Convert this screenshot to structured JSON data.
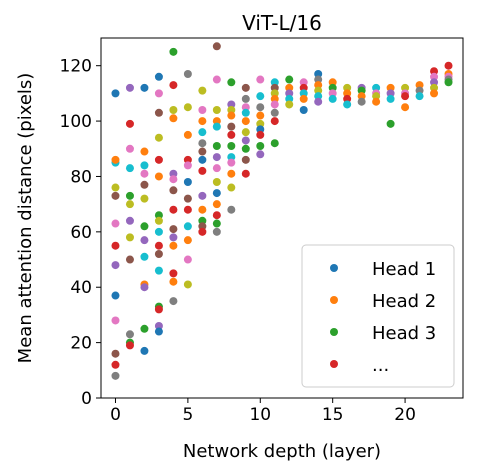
{
  "chart_data": {
    "type": "scatter",
    "title": "ViT-L/16",
    "xlabel": "Network depth (layer)",
    "ylabel": "Mean attention distance (pixels)",
    "xlim": [
      -1,
      24
    ],
    "ylim": [
      0,
      130
    ],
    "xticks": [
      0,
      5,
      10,
      15,
      20
    ],
    "yticks": [
      0,
      20,
      40,
      60,
      80,
      100,
      120
    ],
    "grid": false,
    "legend_position": "lower-right",
    "legend": [
      {
        "label": "Head 1",
        "color": "#1f77b4"
      },
      {
        "label": "Head 2",
        "color": "#ff7f0e"
      },
      {
        "label": "Head 3",
        "color": "#2ca02c"
      },
      {
        "label": "...",
        "color": "#d62728"
      }
    ],
    "points": [
      {
        "x": 0,
        "y": 110,
        "c": "#1f77b4"
      },
      {
        "x": 0,
        "y": 37,
        "c": "#1f77b4"
      },
      {
        "x": 0,
        "y": 8,
        "c": "#7f7f7f"
      },
      {
        "x": 0,
        "y": 12,
        "c": "#d62728"
      },
      {
        "x": 0,
        "y": 16,
        "c": "#8c564b"
      },
      {
        "x": 0,
        "y": 28,
        "c": "#e377c2"
      },
      {
        "x": 0,
        "y": 48,
        "c": "#9467bd"
      },
      {
        "x": 0,
        "y": 55,
        "c": "#d62728"
      },
      {
        "x": 0,
        "y": 63,
        "c": "#e377c2"
      },
      {
        "x": 0,
        "y": 73,
        "c": "#8c564b"
      },
      {
        "x": 0,
        "y": 76,
        "c": "#bcbd22"
      },
      {
        "x": 0,
        "y": 85,
        "c": "#17becf"
      },
      {
        "x": 0,
        "y": 86,
        "c": "#ff7f0e"
      },
      {
        "x": 1,
        "y": 112,
        "c": "#9467bd"
      },
      {
        "x": 1,
        "y": 99,
        "c": "#d62728"
      },
      {
        "x": 1,
        "y": 90,
        "c": "#e377c2"
      },
      {
        "x": 1,
        "y": 83,
        "c": "#17becf"
      },
      {
        "x": 1,
        "y": 73,
        "c": "#2ca02c"
      },
      {
        "x": 1,
        "y": 70,
        "c": "#bcbd22"
      },
      {
        "x": 1,
        "y": 64,
        "c": "#9467bd"
      },
      {
        "x": 1,
        "y": 58,
        "c": "#bcbd22"
      },
      {
        "x": 1,
        "y": 50,
        "c": "#8c564b"
      },
      {
        "x": 1,
        "y": 23,
        "c": "#7f7f7f"
      },
      {
        "x": 1,
        "y": 20,
        "c": "#2ca02c"
      },
      {
        "x": 1,
        "y": 19,
        "c": "#d62728"
      },
      {
        "x": 2,
        "y": 112,
        "c": "#1f77b4"
      },
      {
        "x": 2,
        "y": 89,
        "c": "#ff7f0e"
      },
      {
        "x": 2,
        "y": 84,
        "c": "#17becf"
      },
      {
        "x": 2,
        "y": 81,
        "c": "#e377c2"
      },
      {
        "x": 2,
        "y": 77,
        "c": "#8c564b"
      },
      {
        "x": 2,
        "y": 72,
        "c": "#bcbd22"
      },
      {
        "x": 2,
        "y": 62,
        "c": "#2ca02c"
      },
      {
        "x": 2,
        "y": 57,
        "c": "#9467bd"
      },
      {
        "x": 2,
        "y": 51,
        "c": "#17becf"
      },
      {
        "x": 2,
        "y": 41,
        "c": "#ff7f0e"
      },
      {
        "x": 2,
        "y": 40,
        "c": "#9467bd"
      },
      {
        "x": 2,
        "y": 25,
        "c": "#2ca02c"
      },
      {
        "x": 2,
        "y": 17,
        "c": "#1f77b4"
      },
      {
        "x": 3,
        "y": 116,
        "c": "#1f77b4"
      },
      {
        "x": 3,
        "y": 110,
        "c": "#e377c2"
      },
      {
        "x": 3,
        "y": 103,
        "c": "#8c564b"
      },
      {
        "x": 3,
        "y": 94,
        "c": "#bcbd22"
      },
      {
        "x": 3,
        "y": 86,
        "c": "#d62728"
      },
      {
        "x": 3,
        "y": 80,
        "c": "#ff7f0e"
      },
      {
        "x": 3,
        "y": 66,
        "c": "#2ca02c"
      },
      {
        "x": 3,
        "y": 64,
        "c": "#bcbd22"
      },
      {
        "x": 3,
        "y": 60,
        "c": "#17becf"
      },
      {
        "x": 3,
        "y": 55,
        "c": "#d62728"
      },
      {
        "x": 3,
        "y": 52,
        "c": "#8c564b"
      },
      {
        "x": 3,
        "y": 46,
        "c": "#17becf"
      },
      {
        "x": 3,
        "y": 33,
        "c": "#2ca02c"
      },
      {
        "x": 3,
        "y": 32,
        "c": "#d62728"
      },
      {
        "x": 3,
        "y": 26,
        "c": "#9467bd"
      },
      {
        "x": 3,
        "y": 24,
        "c": "#1f77b4"
      },
      {
        "x": 4,
        "y": 125,
        "c": "#2ca02c"
      },
      {
        "x": 4,
        "y": 113,
        "c": "#d62728"
      },
      {
        "x": 4,
        "y": 104,
        "c": "#bcbd22"
      },
      {
        "x": 4,
        "y": 101,
        "c": "#ff7f0e"
      },
      {
        "x": 4,
        "y": 81,
        "c": "#9467bd"
      },
      {
        "x": 4,
        "y": 79,
        "c": "#e377c2"
      },
      {
        "x": 4,
        "y": 75,
        "c": "#8c564b"
      },
      {
        "x": 4,
        "y": 68,
        "c": "#d62728"
      },
      {
        "x": 4,
        "y": 61,
        "c": "#8c564b"
      },
      {
        "x": 4,
        "y": 58,
        "c": "#9467bd"
      },
      {
        "x": 4,
        "y": 55,
        "c": "#ff7f0e"
      },
      {
        "x": 4,
        "y": 45,
        "c": "#d62728"
      },
      {
        "x": 4,
        "y": 42,
        "c": "#ff7f0e"
      },
      {
        "x": 4,
        "y": 35,
        "c": "#7f7f7f"
      },
      {
        "x": 5,
        "y": 117,
        "c": "#7f7f7f"
      },
      {
        "x": 5,
        "y": 105,
        "c": "#bcbd22"
      },
      {
        "x": 5,
        "y": 95,
        "c": "#ff7f0e"
      },
      {
        "x": 5,
        "y": 86,
        "c": "#d62728"
      },
      {
        "x": 5,
        "y": 84,
        "c": "#e377c2"
      },
      {
        "x": 5,
        "y": 78,
        "c": "#1f77b4"
      },
      {
        "x": 5,
        "y": 72,
        "c": "#8c564b"
      },
      {
        "x": 5,
        "y": 68,
        "c": "#d62728"
      },
      {
        "x": 5,
        "y": 62,
        "c": "#17becf"
      },
      {
        "x": 5,
        "y": 57,
        "c": "#ff7f0e"
      },
      {
        "x": 5,
        "y": 50,
        "c": "#e377c2"
      },
      {
        "x": 5,
        "y": 41,
        "c": "#bcbd22"
      },
      {
        "x": 6,
        "y": 111,
        "c": "#bcbd22"
      },
      {
        "x": 6,
        "y": 104,
        "c": "#e377c2"
      },
      {
        "x": 6,
        "y": 100,
        "c": "#ff7f0e"
      },
      {
        "x": 6,
        "y": 96,
        "c": "#17becf"
      },
      {
        "x": 6,
        "y": 92,
        "c": "#7f7f7f"
      },
      {
        "x": 6,
        "y": 89,
        "c": "#8c564b"
      },
      {
        "x": 6,
        "y": 86,
        "c": "#1f77b4"
      },
      {
        "x": 6,
        "y": 82,
        "c": "#d62728"
      },
      {
        "x": 6,
        "y": 73,
        "c": "#9467bd"
      },
      {
        "x": 6,
        "y": 68,
        "c": "#ff7f0e"
      },
      {
        "x": 6,
        "y": 64,
        "c": "#2ca02c"
      },
      {
        "x": 6,
        "y": 62,
        "c": "#8c564b"
      },
      {
        "x": 6,
        "y": 60,
        "c": "#d62728"
      },
      {
        "x": 7,
        "y": 127,
        "c": "#8c564b"
      },
      {
        "x": 7,
        "y": 115,
        "c": "#e377c2"
      },
      {
        "x": 7,
        "y": 104,
        "c": "#bcbd22"
      },
      {
        "x": 7,
        "y": 100,
        "c": "#ff7f0e"
      },
      {
        "x": 7,
        "y": 98,
        "c": "#17becf"
      },
      {
        "x": 7,
        "y": 91,
        "c": "#2ca02c"
      },
      {
        "x": 7,
        "y": 87,
        "c": "#9467bd"
      },
      {
        "x": 7,
        "y": 83,
        "c": "#e377c2"
      },
      {
        "x": 7,
        "y": 78,
        "c": "#bcbd22"
      },
      {
        "x": 7,
        "y": 74,
        "c": "#1f77b4"
      },
      {
        "x": 7,
        "y": 70,
        "c": "#ff7f0e"
      },
      {
        "x": 7,
        "y": 66,
        "c": "#d62728"
      },
      {
        "x": 7,
        "y": 63,
        "c": "#2ca02c"
      },
      {
        "x": 7,
        "y": 60,
        "c": "#7f7f7f"
      },
      {
        "x": 8,
        "y": 114,
        "c": "#2ca02c"
      },
      {
        "x": 8,
        "y": 106,
        "c": "#9467bd"
      },
      {
        "x": 8,
        "y": 104,
        "c": "#bcbd22"
      },
      {
        "x": 8,
        "y": 102,
        "c": "#ff7f0e"
      },
      {
        "x": 8,
        "y": 98,
        "c": "#8c564b"
      },
      {
        "x": 8,
        "y": 95,
        "c": "#d62728"
      },
      {
        "x": 8,
        "y": 91,
        "c": "#2ca02c"
      },
      {
        "x": 8,
        "y": 87,
        "c": "#17becf"
      },
      {
        "x": 8,
        "y": 85,
        "c": "#e377c2"
      },
      {
        "x": 8,
        "y": 81,
        "c": "#ff7f0e"
      },
      {
        "x": 8,
        "y": 76,
        "c": "#bcbd22"
      },
      {
        "x": 8,
        "y": 68,
        "c": "#7f7f7f"
      },
      {
        "x": 9,
        "y": 112,
        "c": "#8c564b"
      },
      {
        "x": 9,
        "y": 108,
        "c": "#7f7f7f"
      },
      {
        "x": 9,
        "y": 105,
        "c": "#e377c2"
      },
      {
        "x": 9,
        "y": 103,
        "c": "#17becf"
      },
      {
        "x": 9,
        "y": 100,
        "c": "#ff7f0e"
      },
      {
        "x": 9,
        "y": 96,
        "c": "#bcbd22"
      },
      {
        "x": 9,
        "y": 93,
        "c": "#9467bd"
      },
      {
        "x": 9,
        "y": 90,
        "c": "#2ca02c"
      },
      {
        "x": 9,
        "y": 86,
        "c": "#8c564b"
      },
      {
        "x": 9,
        "y": 81,
        "c": "#d62728"
      },
      {
        "x": 10,
        "y": 115,
        "c": "#e377c2"
      },
      {
        "x": 10,
        "y": 109,
        "c": "#17becf"
      },
      {
        "x": 10,
        "y": 105,
        "c": "#7f7f7f"
      },
      {
        "x": 10,
        "y": 102,
        "c": "#ff7f0e"
      },
      {
        "x": 10,
        "y": 99,
        "c": "#bcbd22"
      },
      {
        "x": 10,
        "y": 97,
        "c": "#1f77b4"
      },
      {
        "x": 10,
        "y": 95,
        "c": "#d62728"
      },
      {
        "x": 10,
        "y": 91,
        "c": "#2ca02c"
      },
      {
        "x": 10,
        "y": 88,
        "c": "#9467bd"
      },
      {
        "x": 11,
        "y": 114,
        "c": "#17becf"
      },
      {
        "x": 11,
        "y": 112,
        "c": "#8c564b"
      },
      {
        "x": 11,
        "y": 110,
        "c": "#bcbd22"
      },
      {
        "x": 11,
        "y": 108,
        "c": "#ff7f0e"
      },
      {
        "x": 11,
        "y": 106,
        "c": "#e377c2"
      },
      {
        "x": 11,
        "y": 103,
        "c": "#7f7f7f"
      },
      {
        "x": 11,
        "y": 100,
        "c": "#d62728"
      },
      {
        "x": 11,
        "y": 92,
        "c": "#2ca02c"
      },
      {
        "x": 12,
        "y": 115,
        "c": "#2ca02c"
      },
      {
        "x": 12,
        "y": 112,
        "c": "#ff7f0e"
      },
      {
        "x": 12,
        "y": 110,
        "c": "#9467bd"
      },
      {
        "x": 12,
        "y": 108,
        "c": "#17becf"
      },
      {
        "x": 12,
        "y": 106,
        "c": "#bcbd22"
      },
      {
        "x": 13,
        "y": 114,
        "c": "#e377c2"
      },
      {
        "x": 13,
        "y": 112,
        "c": "#d62728"
      },
      {
        "x": 13,
        "y": 110,
        "c": "#17becf"
      },
      {
        "x": 13,
        "y": 108,
        "c": "#ff7f0e"
      },
      {
        "x": 13,
        "y": 104,
        "c": "#1f77b4"
      },
      {
        "x": 14,
        "y": 117,
        "c": "#1f77b4"
      },
      {
        "x": 14,
        "y": 115,
        "c": "#7f7f7f"
      },
      {
        "x": 14,
        "y": 113,
        "c": "#ff7f0e"
      },
      {
        "x": 14,
        "y": 111,
        "c": "#bcbd22"
      },
      {
        "x": 14,
        "y": 109,
        "c": "#17becf"
      },
      {
        "x": 14,
        "y": 107,
        "c": "#9467bd"
      },
      {
        "x": 15,
        "y": 114,
        "c": "#ff7f0e"
      },
      {
        "x": 15,
        "y": 112,
        "c": "#2ca02c"
      },
      {
        "x": 15,
        "y": 110,
        "c": "#e377c2"
      },
      {
        "x": 15,
        "y": 108,
        "c": "#17becf"
      },
      {
        "x": 16,
        "y": 112,
        "c": "#bcbd22"
      },
      {
        "x": 16,
        "y": 110,
        "c": "#ff7f0e"
      },
      {
        "x": 16,
        "y": 108,
        "c": "#d62728"
      },
      {
        "x": 16,
        "y": 106,
        "c": "#17becf"
      },
      {
        "x": 17,
        "y": 112,
        "c": "#9467bd"
      },
      {
        "x": 17,
        "y": 111,
        "c": "#2ca02c"
      },
      {
        "x": 17,
        "y": 109,
        "c": "#ff7f0e"
      },
      {
        "x": 17,
        "y": 107,
        "c": "#7f7f7f"
      },
      {
        "x": 18,
        "y": 112,
        "c": "#17becf"
      },
      {
        "x": 18,
        "y": 110,
        "c": "#e377c2"
      },
      {
        "x": 18,
        "y": 109,
        "c": "#bcbd22"
      },
      {
        "x": 18,
        "y": 107,
        "c": "#ff7f0e"
      },
      {
        "x": 19,
        "y": 112,
        "c": "#ff7f0e"
      },
      {
        "x": 19,
        "y": 110,
        "c": "#9467bd"
      },
      {
        "x": 19,
        "y": 108,
        "c": "#17becf"
      },
      {
        "x": 19,
        "y": 99,
        "c": "#2ca02c"
      },
      {
        "x": 20,
        "y": 112,
        "c": "#bcbd22"
      },
      {
        "x": 20,
        "y": 110,
        "c": "#e377c2"
      },
      {
        "x": 20,
        "y": 109,
        "c": "#d62728"
      },
      {
        "x": 20,
        "y": 105,
        "c": "#ff7f0e"
      },
      {
        "x": 21,
        "y": 113,
        "c": "#ff7f0e"
      },
      {
        "x": 21,
        "y": 111,
        "c": "#7f7f7f"
      },
      {
        "x": 21,
        "y": 109,
        "c": "#17becf"
      },
      {
        "x": 22,
        "y": 118,
        "c": "#d62728"
      },
      {
        "x": 22,
        "y": 116,
        "c": "#e377c2"
      },
      {
        "x": 22,
        "y": 114,
        "c": "#9467bd"
      },
      {
        "x": 22,
        "y": 112,
        "c": "#bcbd22"
      },
      {
        "x": 22,
        "y": 110,
        "c": "#ff7f0e"
      },
      {
        "x": 23,
        "y": 120,
        "c": "#d62728"
      },
      {
        "x": 23,
        "y": 117,
        "c": "#ff7f0e"
      },
      {
        "x": 23,
        "y": 116,
        "c": "#e377c2"
      },
      {
        "x": 23,
        "y": 115,
        "c": "#7f7f7f"
      },
      {
        "x": 23,
        "y": 114,
        "c": "#2ca02c"
      }
    ]
  }
}
